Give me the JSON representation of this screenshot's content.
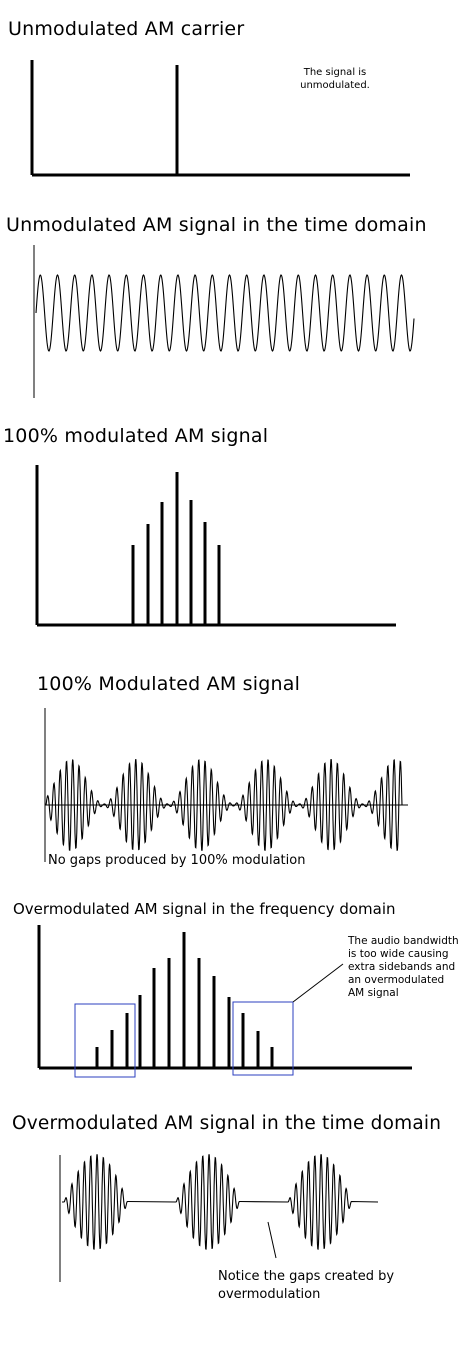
{
  "sections": {
    "unmod_carrier": {
      "title": "Unmodulated AM carrier",
      "note_line1": "The signal is",
      "note_line2": "unmodulated."
    },
    "unmod_time": {
      "title": "Unmodulated AM signal in the time domain"
    },
    "mod100_freq": {
      "title": "100% modulated AM signal"
    },
    "mod100_time": {
      "title": "100% Modulated AM signal",
      "caption": "No gaps produced by 100% modulation"
    },
    "overmod_freq": {
      "title": "Overmodulated AM signal in the frequency domain",
      "callout_lines": [
        "The audio bandwidth",
        "is too wide causing",
        "extra sidebands and",
        "an overmodulated",
        "AM signal"
      ]
    },
    "overmod_time": {
      "title": "Overmodulated AM signal in the time domain",
      "caption_line1": "Notice the gaps created by",
      "caption_line2": "overmodulation"
    }
  },
  "colors": {
    "ink": "#000000",
    "highlight_box": "#2b3fbf"
  }
}
